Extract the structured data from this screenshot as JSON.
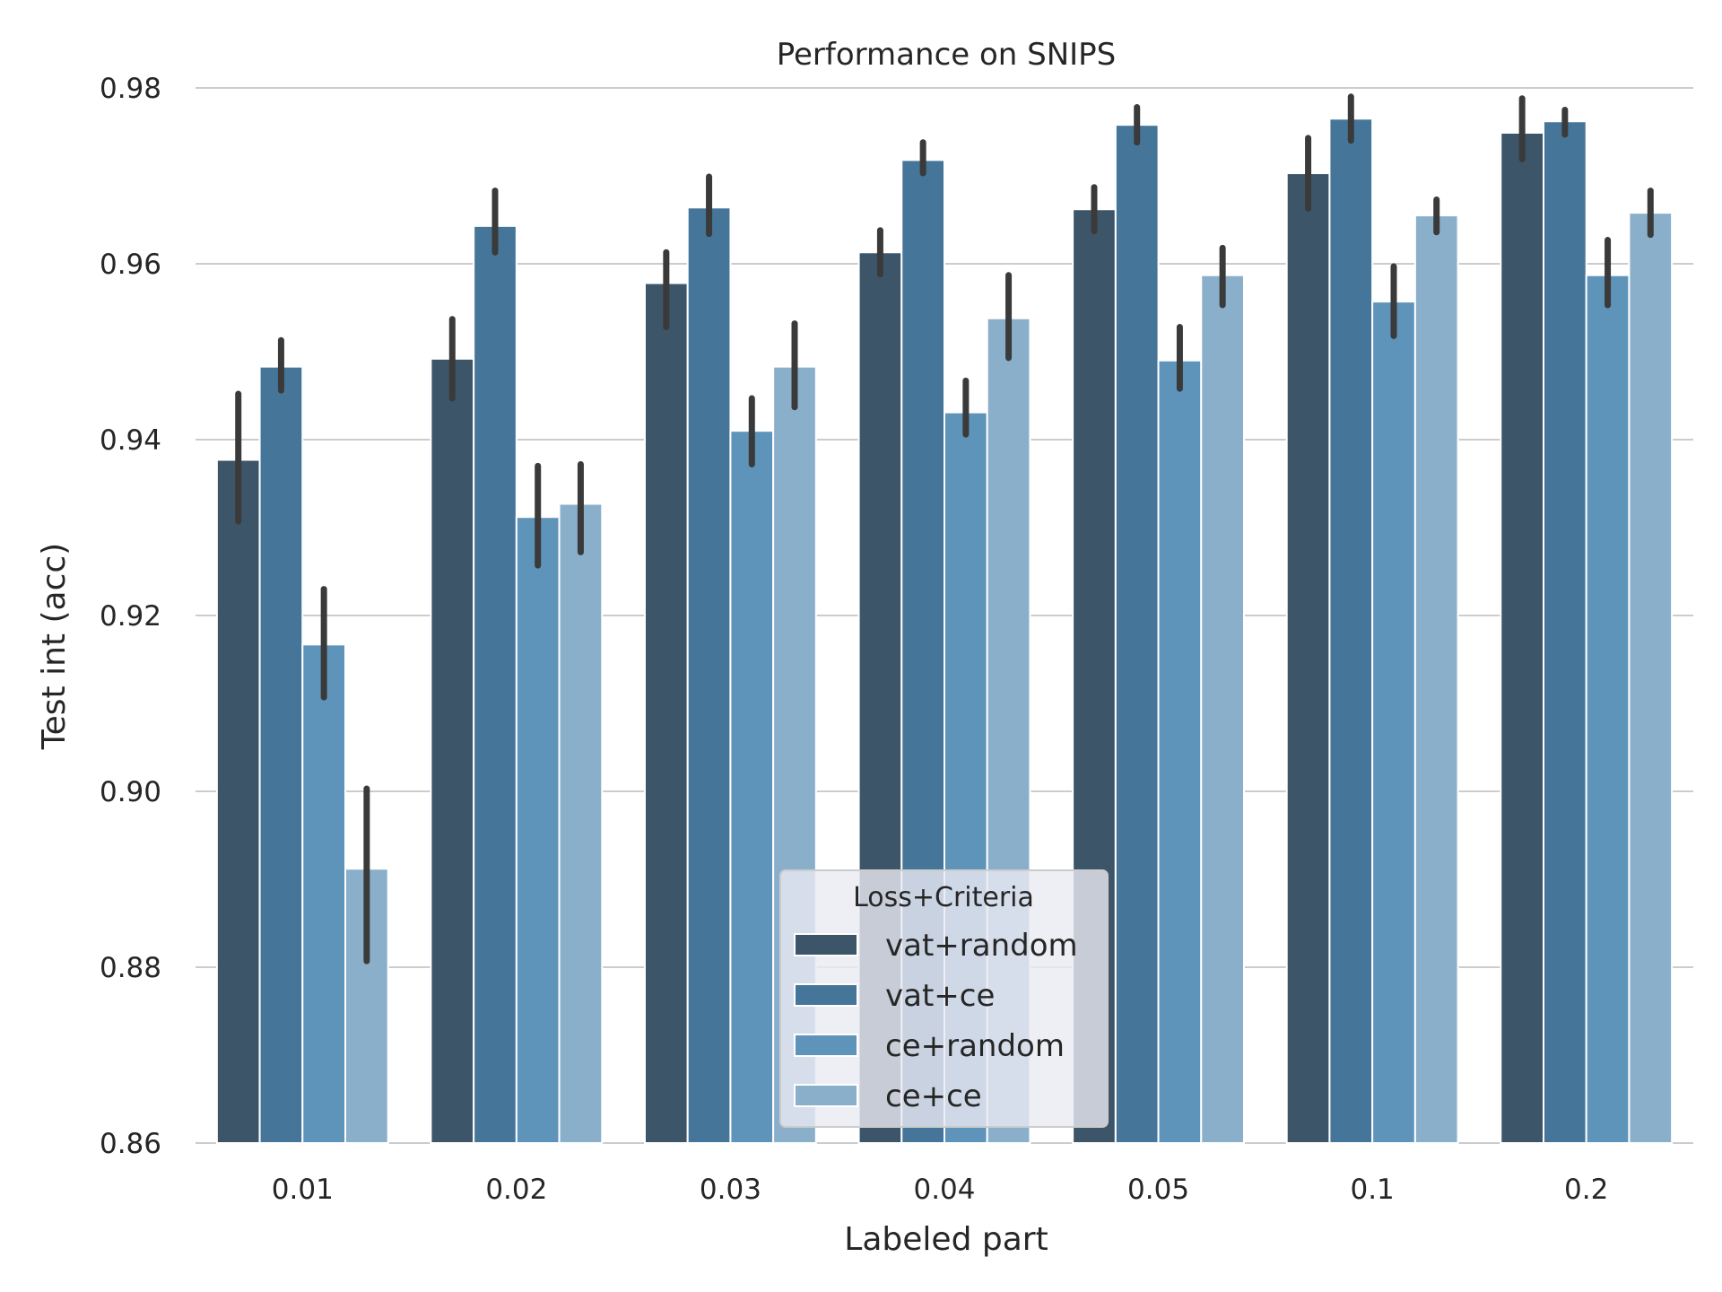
{
  "chart_data": {
    "type": "bar",
    "title": "Performance on SNIPS",
    "xlabel": "Labeled part",
    "ylabel": "Test int (acc)",
    "ylim": [
      0.86,
      0.98
    ],
    "yticks": [
      "0.86",
      "0.88",
      "0.90",
      "0.92",
      "0.94",
      "0.96",
      "0.98"
    ],
    "grid": "horizontal",
    "categories": [
      "0.01",
      "0.02",
      "0.03",
      "0.04",
      "0.05",
      "0.1",
      "0.2"
    ],
    "legend": {
      "title": "Loss+Criteria",
      "placement": "bottom-center"
    },
    "series": [
      {
        "name": "vat+random",
        "color": "#3d5569",
        "values": [
          0.9377,
          0.9492,
          0.9578,
          0.9613,
          0.9662,
          0.9703,
          0.9749
        ],
        "error_low": [
          0.9307,
          0.9447,
          0.9528,
          0.9588,
          0.9637,
          0.9663,
          0.9719
        ],
        "error_high": [
          0.9452,
          0.9537,
          0.9613,
          0.9638,
          0.9687,
          0.9743,
          0.9788
        ]
      },
      {
        "name": "vat+ce",
        "color": "#457699",
        "values": [
          0.9483,
          0.9643,
          0.9664,
          0.9718,
          0.9758,
          0.9765,
          0.9762
        ],
        "error_low": [
          0.9456,
          0.9613,
          0.9634,
          0.9703,
          0.9738,
          0.974,
          0.9747
        ],
        "error_high": [
          0.9513,
          0.9683,
          0.9699,
          0.9738,
          0.9778,
          0.979,
          0.9775
        ]
      },
      {
        "name": "ce+random",
        "color": "#5e93ba",
        "values": [
          0.9167,
          0.9312,
          0.941,
          0.9431,
          0.949,
          0.9557,
          0.9587
        ],
        "error_low": [
          0.9107,
          0.9257,
          0.9372,
          0.9406,
          0.9458,
          0.9518,
          0.9553
        ],
        "error_high": [
          0.923,
          0.937,
          0.9447,
          0.9467,
          0.9528,
          0.9597,
          0.9627
        ]
      },
      {
        "name": "ce+ce",
        "color": "#8aafcb",
        "values": [
          0.8912,
          0.9327,
          0.9483,
          0.9538,
          0.9587,
          0.9655,
          0.9658
        ],
        "error_low": [
          0.8807,
          0.9272,
          0.9437,
          0.9493,
          0.9553,
          0.9636,
          0.9633
        ],
        "error_high": [
          0.9003,
          0.9372,
          0.9532,
          0.9587,
          0.9618,
          0.9673,
          0.9683
        ]
      }
    ]
  }
}
